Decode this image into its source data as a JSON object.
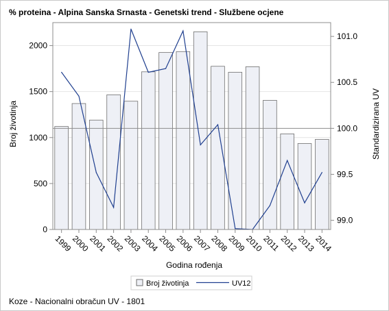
{
  "title": "% proteina - Alpina Sanska Srnasta - Genetski trend - Službene ocjene",
  "footnote": "Koze - Nacionalni obračun UV - 1801",
  "colors": {
    "bar_fill": "#eef0f6",
    "bar_stroke": "#6e6e6e",
    "line": "#1f3f8f",
    "grid": "#e4e4e4",
    "axis": "#8c8c8c",
    "refline": "#8c8c8c"
  },
  "chart_data": {
    "type": "bar+line",
    "xlabel": "Godina rođenja",
    "ylabel_left": "Broj životinja",
    "ylabel_right": "Standardizirana UV",
    "categories": [
      "1999",
      "2000",
      "2001",
      "2002",
      "2003",
      "2004",
      "2005",
      "2006",
      "2007",
      "2008",
      "2009",
      "2010",
      "2011",
      "2012",
      "2013",
      "2014"
    ],
    "series": [
      {
        "name": "Broj životinja",
        "kind": "bar",
        "axis": "left",
        "values": [
          1120,
          1370,
          1190,
          1465,
          1395,
          1715,
          1925,
          1935,
          2150,
          1775,
          1710,
          1770,
          1405,
          1040,
          935,
          980
        ]
      },
      {
        "name": "UV12",
        "kind": "line",
        "axis": "right",
        "values": [
          100.61,
          100.35,
          99.52,
          99.14,
          101.08,
          100.61,
          100.65,
          101.06,
          99.82,
          100.04,
          98.91,
          98.9,
          99.16,
          99.65,
          99.19,
          99.52
        ]
      }
    ],
    "ylim_left": [
      0,
      2250
    ],
    "yticks_left": [
      0,
      500,
      1000,
      1500,
      2000
    ],
    "ylim_right": [
      98.9,
      101.15
    ],
    "yticks_right": [
      "99.0",
      "99.5",
      "100.0",
      "100.5",
      "101.0"
    ],
    "reference_line_right": 100.0,
    "grid": "horizontal",
    "legend_position": "bottom"
  }
}
